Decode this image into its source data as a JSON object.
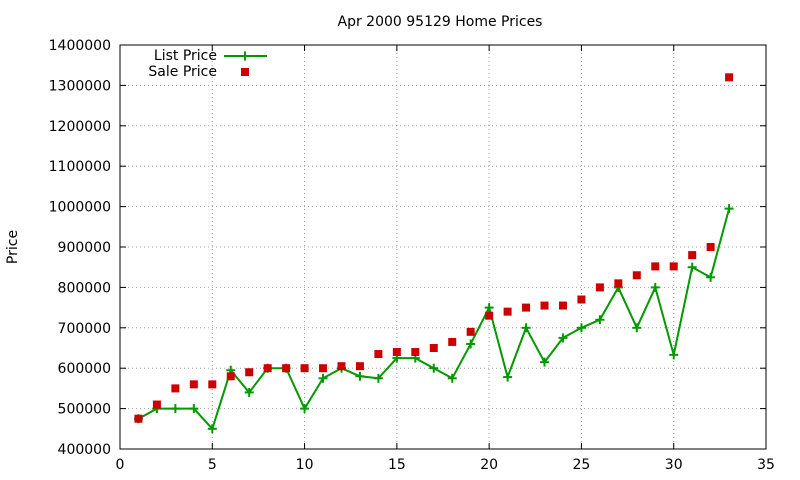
{
  "chart_data": {
    "type": "line",
    "title": "Apr 2000 95129 Home Prices",
    "xlabel": "",
    "ylabel": "Price",
    "xlim": [
      0,
      35
    ],
    "ylim": [
      400000,
      1400000
    ],
    "xticks": [
      0,
      5,
      10,
      15,
      20,
      25,
      30,
      35
    ],
    "xtick_labels": [
      "0",
      "5",
      "10",
      "15",
      "20",
      "25",
      "30",
      "35"
    ],
    "yticks": [
      400000,
      500000,
      600000,
      700000,
      800000,
      900000,
      1000000,
      1100000,
      1200000,
      1300000,
      1400000
    ],
    "ytick_labels": [
      "400000",
      "500000",
      "600000",
      "700000",
      "800000",
      "900000",
      "1000000",
      "1100000",
      "1200000",
      "1300000",
      "1400000"
    ],
    "grid": true,
    "legend_position": "top-left",
    "x": [
      1,
      2,
      3,
      4,
      5,
      6,
      7,
      8,
      9,
      10,
      11,
      12,
      13,
      14,
      15,
      16,
      17,
      18,
      19,
      20,
      21,
      22,
      23,
      24,
      25,
      26,
      27,
      28,
      29,
      30,
      31,
      32,
      33
    ],
    "series": [
      {
        "name": "List Price",
        "style": "linespoints",
        "color": "#009900",
        "marker": "plus",
        "values": [
          475000,
          500000,
          500000,
          500000,
          450000,
          595000,
          540000,
          600000,
          600000,
          500000,
          575000,
          600000,
          580000,
          575000,
          625000,
          625000,
          600000,
          575000,
          660000,
          750000,
          578000,
          700000,
          615000,
          675000,
          700000,
          720000,
          800000,
          700000,
          800000,
          633000,
          850000,
          825000,
          995000
        ]
      },
      {
        "name": "Sale Price",
        "style": "points",
        "color": "#cc0000",
        "marker": "square",
        "values": [
          475000,
          510000,
          550000,
          560000,
          560000,
          580000,
          590000,
          600000,
          600000,
          600000,
          600000,
          605000,
          605000,
          635000,
          640000,
          640000,
          650000,
          665000,
          690000,
          730000,
          740000,
          750000,
          755000,
          755000,
          770000,
          800000,
          810000,
          830000,
          852000,
          852000,
          880000,
          900000,
          1320000
        ]
      }
    ]
  }
}
